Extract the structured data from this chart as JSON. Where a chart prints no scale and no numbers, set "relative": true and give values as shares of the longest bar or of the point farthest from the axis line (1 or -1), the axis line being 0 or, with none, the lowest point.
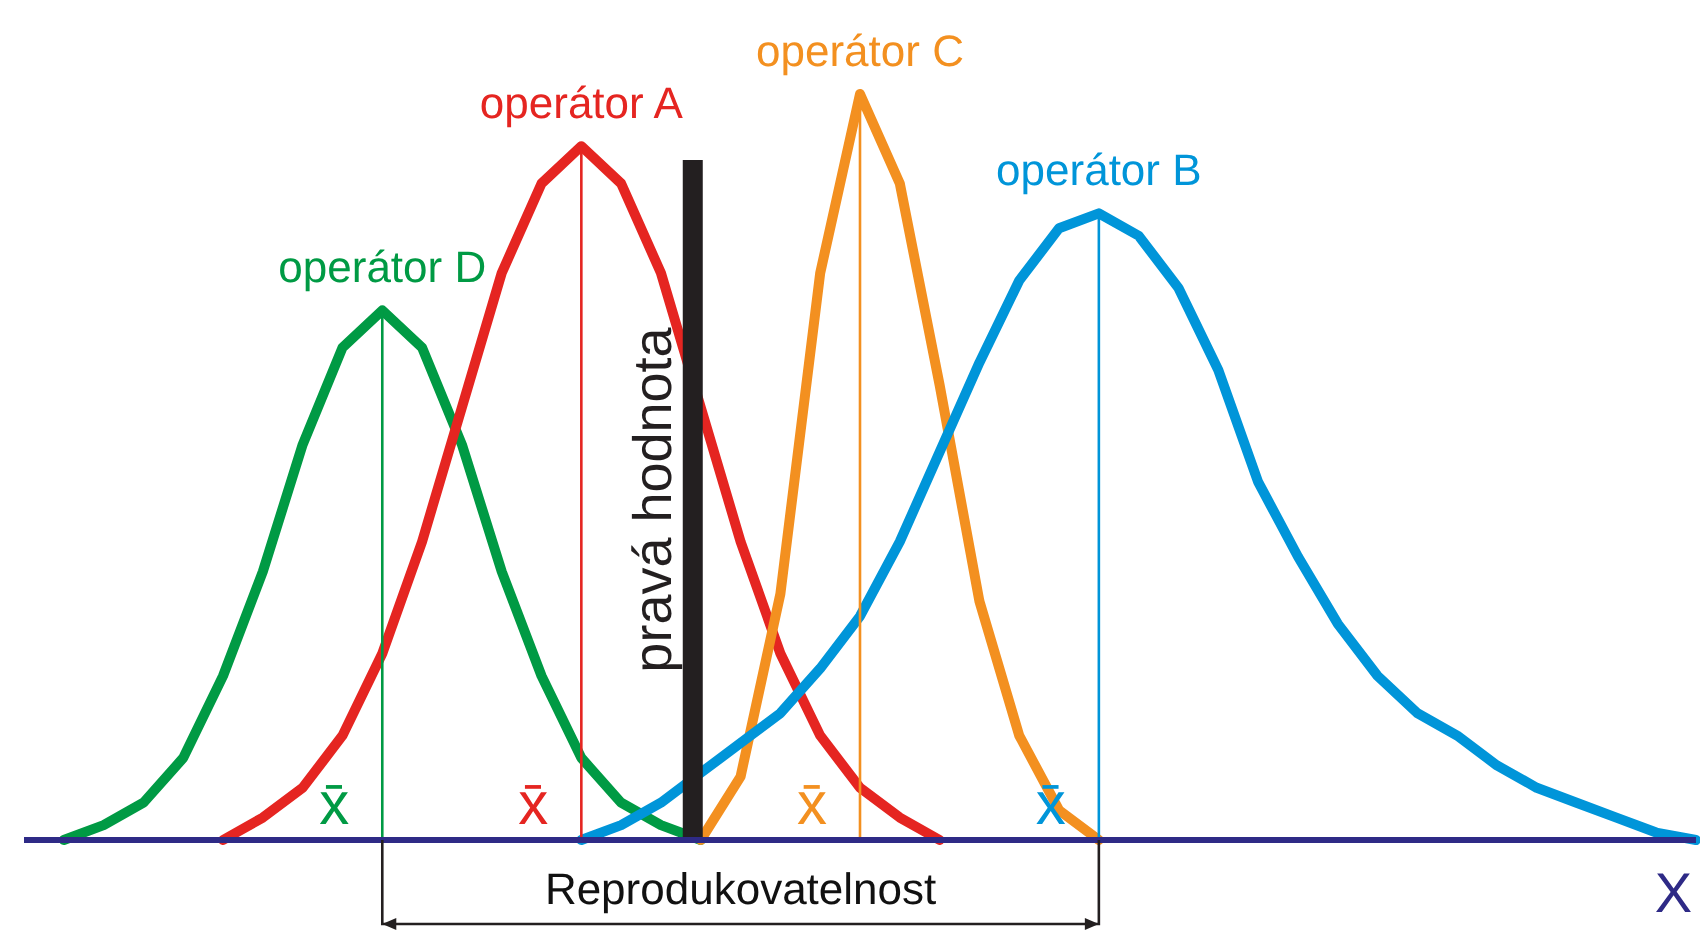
{
  "chart_data": {
    "type": "line",
    "relative": true,
    "xlabel": "X",
    "legend": false,
    "marker": "none",
    "line_style": "solid",
    "categories": [
      null,
      null,
      null,
      null,
      null,
      null,
      null,
      null,
      null,
      null,
      null,
      null,
      null,
      null,
      null,
      null,
      null,
      null,
      null,
      null,
      null,
      null,
      null,
      null,
      null,
      null,
      null,
      null,
      null,
      null,
      null,
      null,
      null,
      null,
      null,
      null,
      null,
      null,
      null,
      null,
      null,
      null,
      null
    ],
    "series": [
      {
        "name": "operátor D",
        "color": "#009a44",
        "values": [
          null,
          0,
          0.02,
          0.05,
          0.11,
          0.22,
          0.36,
          0.53,
          0.66,
          0.71,
          0.66,
          0.53,
          0.36,
          0.22,
          0.11,
          0.05,
          0.02,
          0,
          null,
          null,
          null,
          null,
          null,
          null,
          null,
          null,
          null,
          null,
          null,
          null,
          null,
          null,
          null,
          null,
          null,
          null,
          null,
          null,
          null,
          null,
          null,
          null,
          null
        ]
      },
      {
        "name": "operátor A",
        "color": "#e52521",
        "values": [
          null,
          null,
          null,
          null,
          null,
          0,
          0.03,
          0.07,
          0.14,
          0.25,
          0.4,
          0.58,
          0.76,
          0.88,
          0.93,
          0.88,
          0.76,
          0.58,
          0.4,
          0.25,
          0.14,
          0.07,
          0.03,
          0,
          null,
          null,
          null,
          null,
          null,
          null,
          null,
          null,
          null,
          null,
          null,
          null,
          null,
          null,
          null,
          null,
          null,
          null,
          null
        ]
      },
      {
        "name": "operátor C",
        "color": "#f39020",
        "values": [
          null,
          null,
          null,
          null,
          null,
          null,
          null,
          null,
          null,
          null,
          null,
          null,
          null,
          null,
          null,
          null,
          null,
          0,
          0.085,
          0.33,
          0.76,
          1,
          0.88,
          0.61,
          0.32,
          0.14,
          0.04,
          0,
          null,
          null,
          null,
          null,
          null,
          null,
          null,
          null,
          null,
          null,
          null,
          null,
          null,
          null,
          null
        ]
      },
      {
        "name": "operátor B",
        "color": "#0095d9",
        "values": [
          null,
          null,
          null,
          null,
          null,
          null,
          null,
          null,
          null,
          null,
          null,
          null,
          null,
          null,
          0,
          0.02,
          0.05,
          0.09,
          0.13,
          0.17,
          0.23,
          0.3,
          0.4,
          0.52,
          0.64,
          0.75,
          0.82,
          0.84,
          0.81,
          0.74,
          0.63,
          0.48,
          0.38,
          0.29,
          0.22,
          0.17,
          0.14,
          0.1,
          0.07,
          0.05,
          0.03,
          0.01,
          0
        ]
      }
    ],
    "annotations": [
      "x̄",
      "x̄",
      "x̄",
      "x̄",
      "pravá hodnota",
      "Reprodukovatelnost"
    ]
  }
}
